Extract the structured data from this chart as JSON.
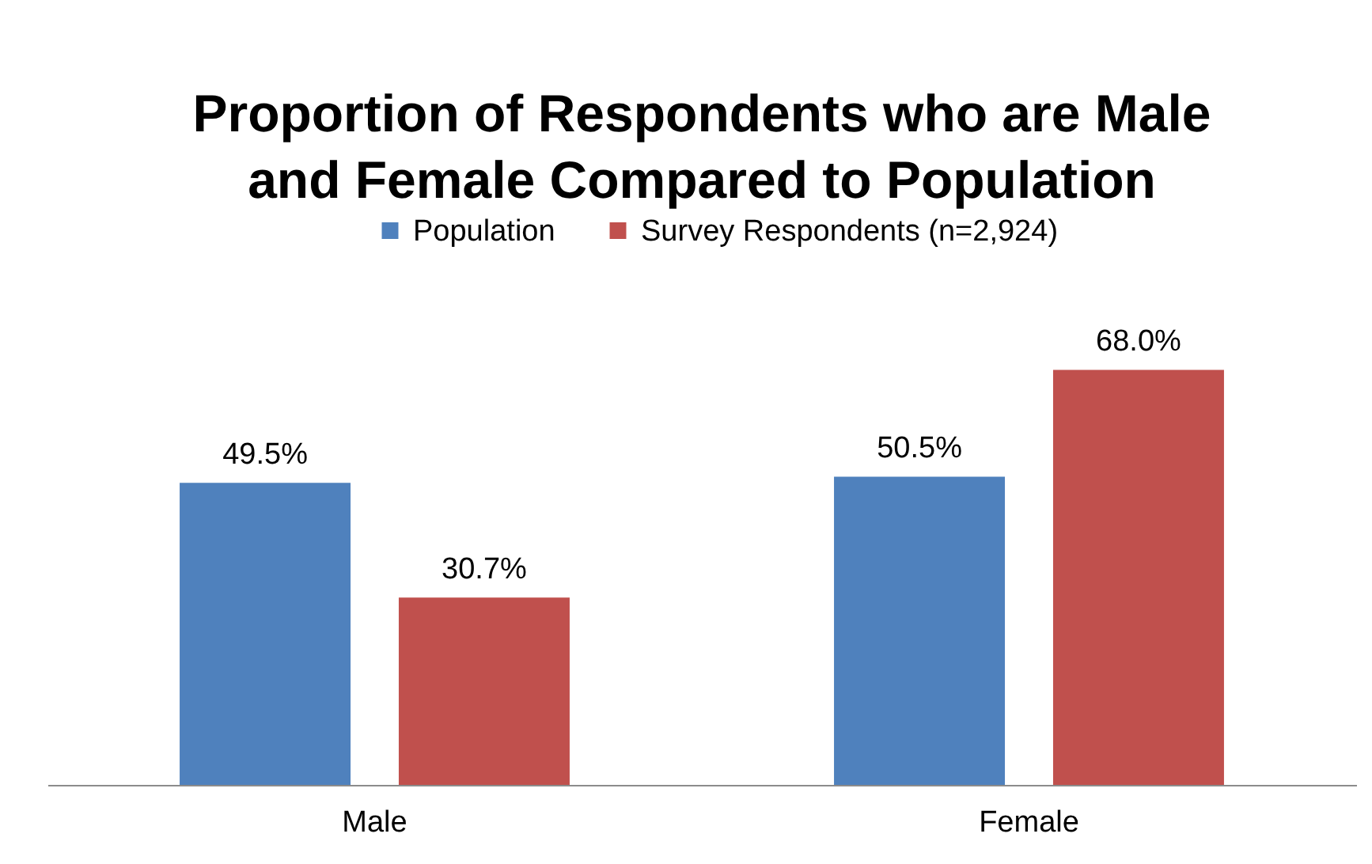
{
  "chart_data": {
    "type": "bar",
    "title": "Proportion of Respondents who are Male\nand Female Compared to Population",
    "categories": [
      "Male",
      "Female"
    ],
    "series": [
      {
        "name": "Population",
        "color": "#4f81bd",
        "values": [
          49.5,
          50.5
        ],
        "value_labels": [
          "49.5%",
          "50.5%"
        ]
      },
      {
        "name": "Survey Respondents (n=2,924)",
        "color": "#c0504d",
        "values": [
          30.7,
          68.0
        ],
        "value_labels": [
          "30.7%",
          "68.0%"
        ]
      }
    ],
    "legend": "top",
    "tick_labels": "x"
  }
}
